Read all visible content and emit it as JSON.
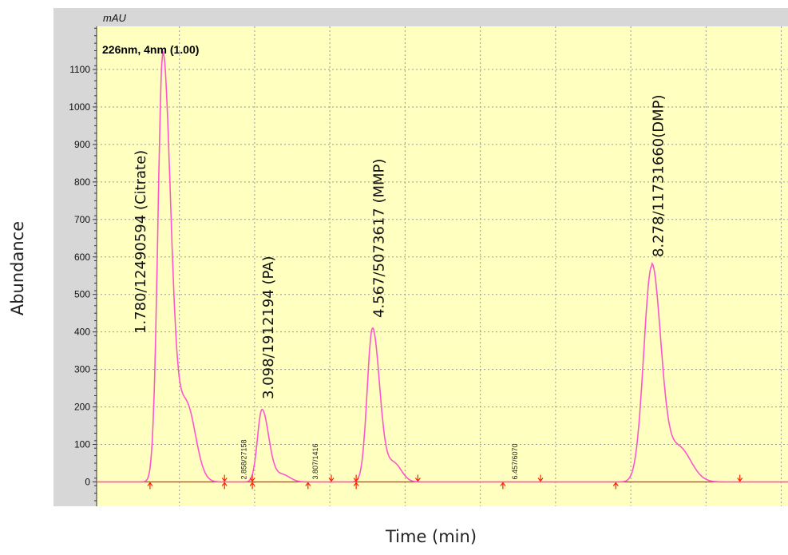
{
  "chart_data": {
    "type": "line",
    "title": "226nm, 4nm (1.00)",
    "unit_label": "mAU",
    "xlabel": "Time (min)",
    "ylabel": "Abundance",
    "xlim": [
      0.9,
      10.1
    ],
    "ylim": [
      -65,
      1215
    ],
    "yticks": [
      0,
      100,
      200,
      300,
      400,
      500,
      600,
      700,
      800,
      900,
      1000,
      1100
    ],
    "x_gridlines": [
      2,
      3,
      4,
      5,
      6,
      7,
      8,
      9,
      10
    ],
    "grid": true,
    "colors": {
      "background": "#ffffc0",
      "trace": "#ff55cc",
      "baseline": "#ff2200",
      "marker": "#ff2200"
    },
    "series": [
      {
        "peaks": [
          {
            "rt": 1.78,
            "height": 1140,
            "label": "1.780/12490594 (Citrate)"
          },
          {
            "rt": 3.098,
            "height": 193,
            "label": "3.098/1912194 (PA)"
          },
          {
            "rt": 4.567,
            "height": 410,
            "label": "4.567/5073617 (MMP)"
          },
          {
            "rt": 8.278,
            "height": 575,
            "label": "8.278/11731660(DMP)"
          }
        ]
      }
    ],
    "small_annotations": [
      {
        "x": 2.86,
        "text": "2.858/27158"
      },
      {
        "x": 3.81,
        "text": "3.807/1416"
      },
      {
        "x": 6.46,
        "text": "6.457/6070"
      }
    ],
    "integration_markers": {
      "up": [
        1.61,
        2.6,
        2.97,
        3.71,
        4.35,
        6.3,
        7.8
      ],
      "down": [
        2.6,
        2.97,
        4.02,
        4.35,
        5.17,
        6.8,
        9.45
      ]
    }
  }
}
